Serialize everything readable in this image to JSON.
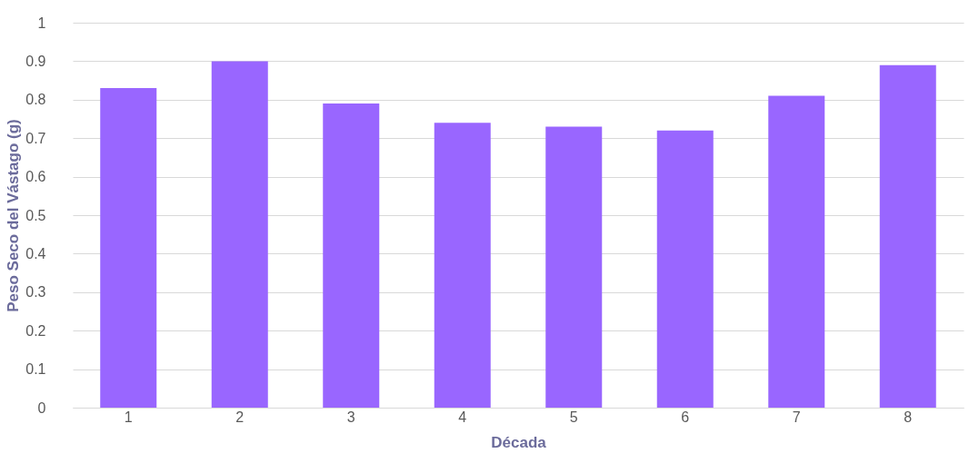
{
  "chart_data": {
    "type": "bar",
    "xlabel": "Década",
    "ylabel": "Peso Seco del Vástago (g)",
    "categories": [
      "1",
      "2",
      "3",
      "4",
      "5",
      "6",
      "7",
      "8"
    ],
    "values": [
      0.83,
      0.9,
      0.79,
      0.74,
      0.73,
      0.72,
      0.81,
      0.89
    ],
    "color": "#9966ff",
    "ylim": [
      0,
      1
    ],
    "yticks": [
      0,
      0.1,
      0.2,
      0.3,
      0.4,
      0.5,
      0.6,
      0.7,
      0.8,
      0.9,
      1
    ],
    "grid": "y"
  }
}
